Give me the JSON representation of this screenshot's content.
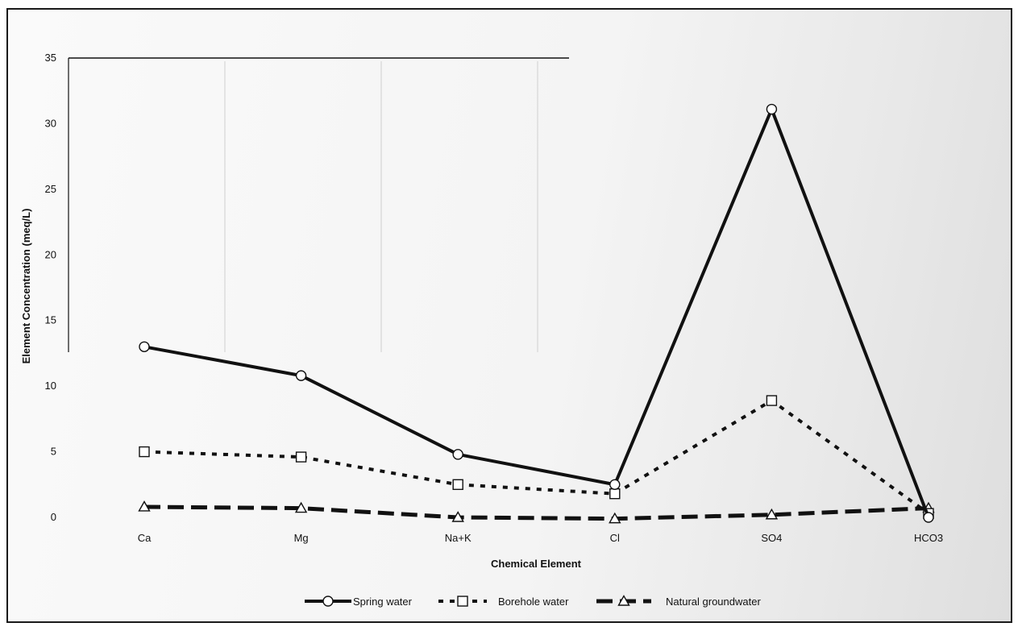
{
  "chart_data": {
    "type": "line",
    "title": "",
    "xlabel": "Chemical Element",
    "ylabel": "Element Concentration (meq/L)",
    "categories": [
      "Ca",
      "Mg",
      "Na+K",
      "Cl",
      "SO4",
      "HCO3"
    ],
    "ylim": [
      0,
      35
    ],
    "yticks": [
      0,
      5,
      10,
      15,
      20,
      25,
      30,
      35
    ],
    "grid": false,
    "legend_position": "bottom",
    "series": [
      {
        "name": "Spring water",
        "values": [
          13.0,
          10.8,
          4.8,
          2.5,
          31.1,
          0.0
        ],
        "marker": "circle",
        "dash": "solid",
        "color": "#111111"
      },
      {
        "name": "Borehole water",
        "values": [
          5.0,
          4.6,
          2.5,
          1.8,
          8.9,
          0.3
        ],
        "marker": "square",
        "dash": "dotted",
        "color": "#111111"
      },
      {
        "name": "Natural groundwater",
        "values": [
          0.8,
          0.7,
          0.0,
          -0.1,
          0.2,
          0.7
        ],
        "marker": "triangle",
        "dash": "dashed",
        "color": "#111111"
      }
    ]
  }
}
